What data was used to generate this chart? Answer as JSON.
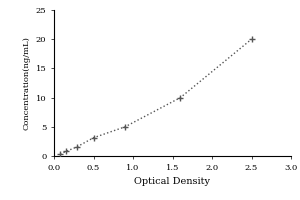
{
  "x_data": [
    0.078,
    0.15,
    0.29,
    0.5,
    0.9,
    1.6,
    2.5
  ],
  "y_data": [
    0.31,
    0.78,
    1.56,
    3.125,
    5.0,
    10.0,
    20.0
  ],
  "xlabel": "Optical Density",
  "ylabel": "Concentration(ng/mL)",
  "xlim": [
    0,
    3
  ],
  "ylim": [
    0,
    25
  ],
  "xticks": [
    0,
    0.5,
    1,
    1.5,
    2,
    2.5,
    3
  ],
  "yticks": [
    0,
    5,
    10,
    15,
    20,
    25
  ],
  "line_color": "#555555",
  "marker_color": "#555555",
  "background_color": "#ffffff",
  "spine_color": "#000000",
  "xlabel_fontsize": 7,
  "ylabel_fontsize": 6,
  "tick_fontsize": 6
}
